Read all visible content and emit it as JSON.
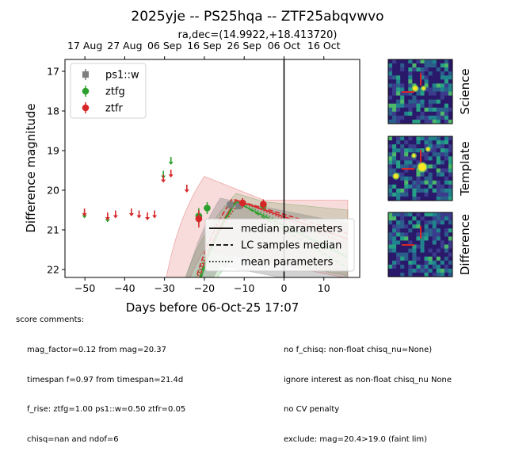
{
  "title": "2025yje -- PS25hqa -- ZTF25abqvwvo",
  "subtitle": "ra,dec=(14.9922,+18.413720)",
  "chart_data": {
    "type": "scatter",
    "xlabel": "Days before 06-Oct-25 17:07",
    "ylabel": "Difference magnitude",
    "xlim": [
      -55,
      19
    ],
    "ylim": [
      22.2,
      16.7
    ],
    "x_ticks": [
      -50,
      -40,
      -30,
      -20,
      -10,
      0,
      10
    ],
    "y_ticks": [
      17,
      18,
      19,
      20,
      21,
      22
    ],
    "top_axis": {
      "labels": [
        "17 Aug",
        "27 Aug",
        "06 Sep",
        "16 Sep",
        "26 Sep",
        "06 Oct",
        "16 Oct"
      ],
      "positions": [
        -50,
        -40,
        -30,
        -20,
        -10,
        0,
        10
      ]
    },
    "vline_x": 0,
    "legend_points": [
      "ps1::w",
      "ztfg",
      "ztfr"
    ],
    "legend_lines": [
      "median parameters",
      "LC samples median",
      "mean parameters"
    ],
    "colors": {
      "ps1::w": "#7f7f7f",
      "ztfg": "#2ca02c",
      "ztfr": "#d62728"
    },
    "upper_limits": [
      {
        "band": "ztfg",
        "x": -50.1,
        "y": 20.65
      },
      {
        "band": "ztfr",
        "x": -50.1,
        "y": 20.6
      },
      {
        "band": "ztfg",
        "x": -44.3,
        "y": 20.75
      },
      {
        "band": "ztfr",
        "x": -44.3,
        "y": 20.7
      },
      {
        "band": "ztfr",
        "x": -42.3,
        "y": 20.65
      },
      {
        "band": "ztfr",
        "x": -38.3,
        "y": 20.6
      },
      {
        "band": "ztfr",
        "x": -36.4,
        "y": 20.65
      },
      {
        "band": "ztfr",
        "x": -34.3,
        "y": 20.7
      },
      {
        "band": "ztfr",
        "x": -32.5,
        "y": 20.65
      },
      {
        "band": "ztfg",
        "x": -30.3,
        "y": 19.65
      },
      {
        "band": "ztfr",
        "x": -30.3,
        "y": 19.75
      },
      {
        "band": "ztfg",
        "x": -28.4,
        "y": 19.3
      },
      {
        "band": "ztfr",
        "x": -28.4,
        "y": 19.62
      },
      {
        "band": "ztfr",
        "x": -24.4,
        "y": 20.0
      }
    ],
    "detections": [
      {
        "band": "ztfg",
        "x": -21.4,
        "y": 20.65,
        "err": 0.2
      },
      {
        "band": "ztfr",
        "x": -21.4,
        "y": 20.72,
        "err": 0.22
      },
      {
        "band": "ztfg",
        "x": -19.3,
        "y": 20.45,
        "err": 0.15
      },
      {
        "band": "ps1::w",
        "x": -13.5,
        "y": 20.37,
        "err": 0.08
      },
      {
        "band": "ps1::w",
        "x": -11.4,
        "y": 20.4,
        "err": 0.08
      },
      {
        "band": "ztfr",
        "x": -10.4,
        "y": 20.32,
        "err": 0.12
      },
      {
        "band": "ztfg",
        "x": -5.2,
        "y": 20.38,
        "err": 0.12
      },
      {
        "band": "ztfr",
        "x": -5.2,
        "y": 20.35,
        "err": 0.12
      }
    ]
  },
  "stamps": {
    "science_label": "Science",
    "template_label": "Template",
    "difference_label": "Difference"
  },
  "comments": {
    "header": "score comments:",
    "left": [
      "mag_factor=0.12 from mag=20.37",
      "timespan f=0.97 from timespan=21.4d",
      "f_rise: ztfg=1.00 ps1::w=0.50 ztfr=0.05",
      "chisq=nan and ndof=6"
    ],
    "right": [
      "no f_chisq: non-float chisq_nu=None)",
      "ignore interest as non-float chisq_nu None",
      "no CV penalty",
      "exclude: mag=20.4>19.0 (faint lim)"
    ]
  }
}
